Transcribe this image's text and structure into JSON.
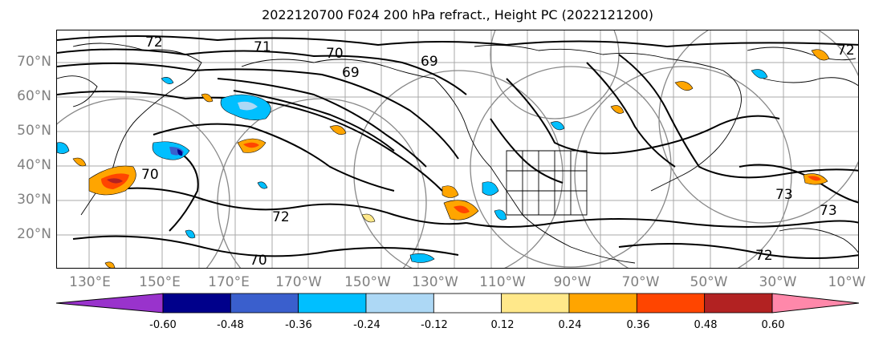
{
  "title": "2022120700 F024 200 hPa refract., Height PC (2022121200)",
  "lat_labels": [
    "70°N",
    "60°N",
    "50°N",
    "40°N",
    "30°N",
    "20°N"
  ],
  "lon_labels": [
    "130°E",
    "150°E",
    "170°E",
    "170°W",
    "150°W",
    "130°W",
    "110°W",
    "90°W",
    "70°W",
    "50°W",
    "30°W",
    "10°W"
  ],
  "contour_labels": [
    "72",
    "71",
    "70",
    "69",
    "69",
    "72",
    "70",
    "70",
    "72",
    "73",
    "73",
    "72"
  ],
  "colorbar": {
    "colors": [
      "#9933cc",
      "#00008b",
      "#3a5fcd",
      "#00bfff",
      "#add8f5",
      "#ffffff",
      "#ffe88a",
      "#ffa500",
      "#ff4500",
      "#b22222",
      "#ff88aa"
    ],
    "tick_labels": [
      "-0.60",
      "-0.48",
      "-0.36",
      "-0.24",
      "-0.12",
      "0.12",
      "0.24",
      "0.36",
      "0.48",
      "0.60"
    ]
  }
}
